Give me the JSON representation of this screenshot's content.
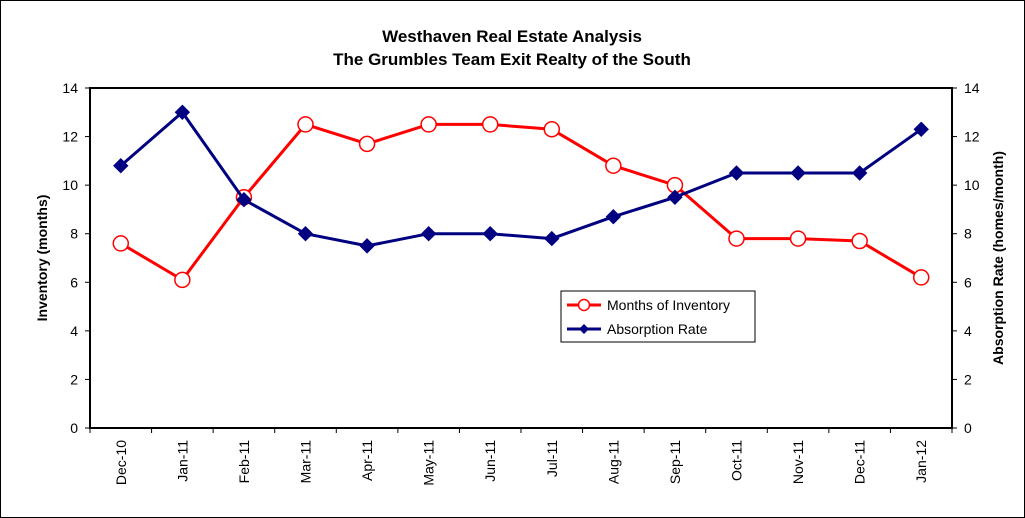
{
  "chart_data": {
    "type": "line",
    "title": "Westhaven Real Estate Analysis",
    "subtitle": "The Grumbles Team Exit Realty of the South",
    "ylabel": "Inventory (months)",
    "y2label": "Absorption Rate (homes/month)",
    "ylim": [
      0,
      14
    ],
    "y2lim": [
      0,
      14
    ],
    "yticks": [
      0,
      2,
      4,
      6,
      8,
      10,
      12,
      14
    ],
    "categories": [
      "Dec-10",
      "Jan-11",
      "Feb-11",
      "Mar-11",
      "Apr-11",
      "May-11",
      "Jun-11",
      "Jul-11",
      "Aug-11",
      "Sep-11",
      "Oct-11",
      "Nov-11",
      "Dec-11",
      "Jan-12"
    ],
    "series": [
      {
        "name": "Months of Inventory",
        "axis": "left",
        "color": "#ff0000",
        "marker": "circle",
        "values": [
          7.6,
          6.1,
          9.5,
          12.5,
          11.7,
          12.5,
          12.5,
          12.3,
          10.8,
          10.0,
          7.8,
          7.8,
          7.7,
          6.2
        ]
      },
      {
        "name": "Absorption Rate",
        "axis": "right",
        "color": "#000080",
        "marker": "diamond",
        "values": [
          10.8,
          13.0,
          9.4,
          8.0,
          7.5,
          8.0,
          8.0,
          7.8,
          8.7,
          9.5,
          10.5,
          10.5,
          10.5,
          12.3
        ]
      }
    ],
    "grid": false,
    "legend_position": "center-right"
  }
}
